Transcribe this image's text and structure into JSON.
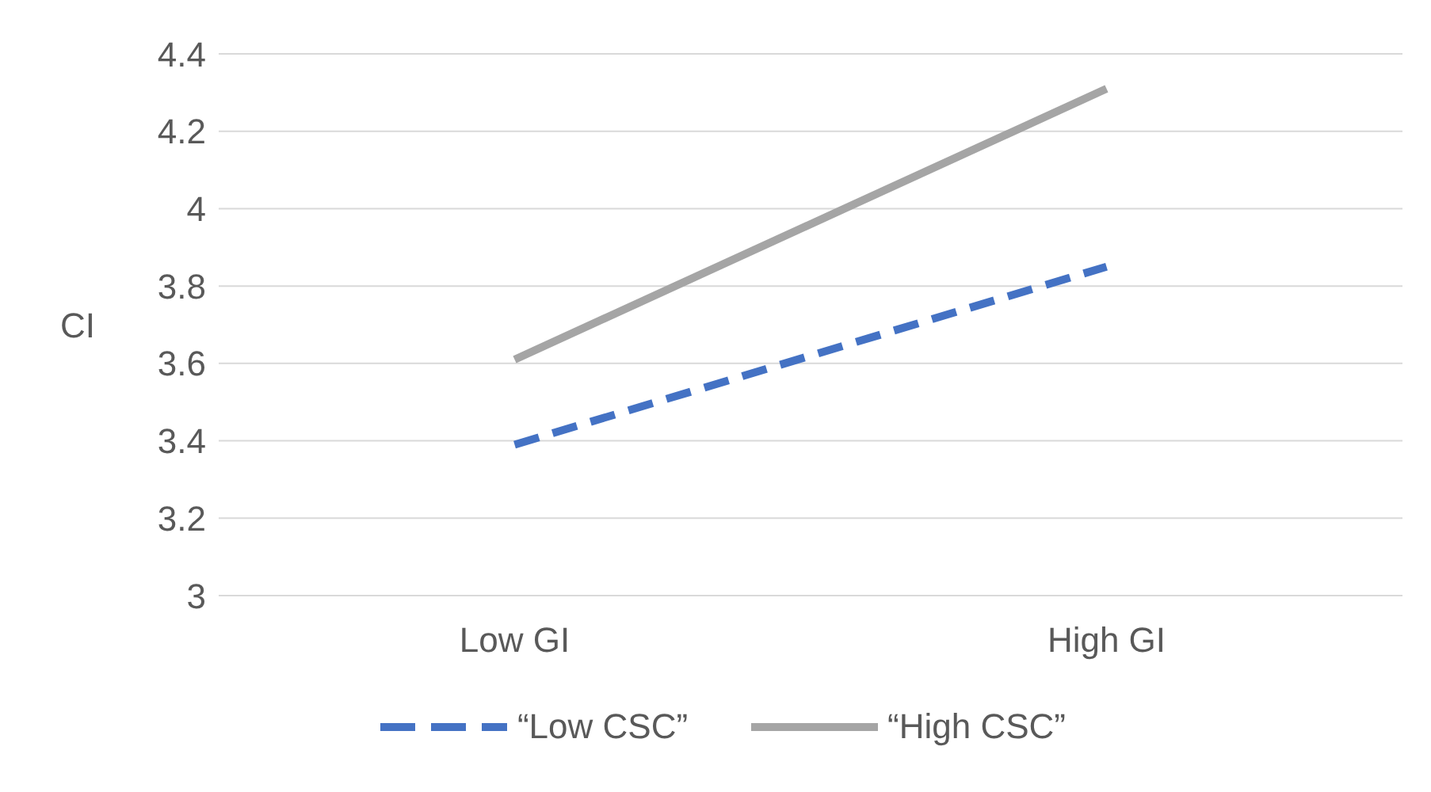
{
  "chart_data": {
    "type": "line",
    "ylabel": "CI",
    "categories": [
      "Low GI",
      "High GI"
    ],
    "series": [
      {
        "name": "“Low CSC”",
        "color": "#4472c4",
        "values": [
          3.39,
          3.85
        ],
        "line_style": "dashed"
      },
      {
        "name": "“High CSC”",
        "color": "#a5a5a5",
        "values": [
          3.61,
          4.31
        ],
        "line_style": "solid"
      }
    ],
    "ylim": [
      3,
      4.4
    ],
    "yticks": [
      3,
      3.2,
      3.4,
      3.6,
      3.8,
      4,
      4.2,
      4.4
    ],
    "grid": "y",
    "legend": "bottom",
    "marker": "none"
  }
}
